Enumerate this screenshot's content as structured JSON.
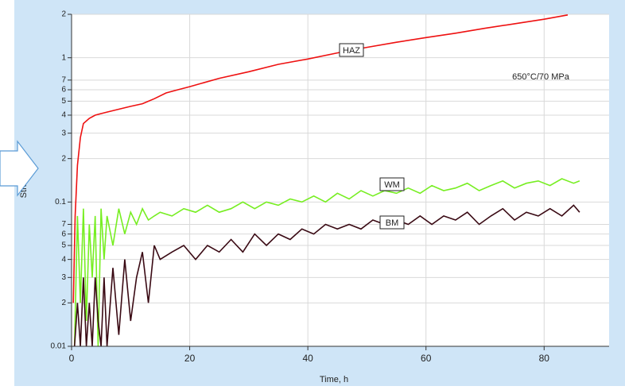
{
  "chart_data": {
    "type": "line",
    "log_y": true,
    "grid": true,
    "x_label": "Time, h",
    "y_label": "Strain, %",
    "annotations": [
      "650°C/70 MPa"
    ],
    "xlim": [
      0,
      91
    ],
    "xticks": [
      0,
      20,
      40,
      60,
      80
    ],
    "ylim": [
      0.01,
      2
    ],
    "yticks": [
      0.01,
      {
        "value": 0.02,
        "label": "2"
      },
      {
        "value": 0.03,
        "label": "3"
      },
      {
        "value": 0.04,
        "label": "4"
      },
      {
        "value": 0.05,
        "label": "5"
      },
      {
        "value": 0.06,
        "label": "6"
      },
      {
        "value": 0.07,
        "label": "7"
      },
      0.1,
      {
        "value": 0.2,
        "label": "2"
      },
      {
        "value": 0.3,
        "label": "3"
      },
      {
        "value": 0.4,
        "label": "4"
      },
      {
        "value": 0.5,
        "label": "5"
      },
      {
        "value": 0.6,
        "label": "6"
      },
      {
        "value": 0.7,
        "label": "7"
      },
      1,
      2
    ],
    "series": [
      {
        "name": "HAZ",
        "color": "#ee1111",
        "x": [
          0.3,
          0.6,
          1,
          1.5,
          2,
          3,
          4,
          5,
          6,
          8,
          10,
          12,
          14,
          16,
          18,
          20,
          25,
          30,
          35,
          40,
          45,
          50,
          55,
          60,
          65,
          70,
          75,
          80,
          84
        ],
        "values": [
          0.02,
          0.08,
          0.18,
          0.28,
          0.35,
          0.38,
          0.4,
          0.41,
          0.42,
          0.44,
          0.46,
          0.48,
          0.52,
          0.57,
          0.6,
          0.63,
          0.72,
          0.8,
          0.9,
          0.98,
          1.08,
          1.18,
          1.28,
          1.38,
          1.48,
          1.6,
          1.72,
          1.85,
          1.98
        ]
      },
      {
        "name": "WM",
        "color": "#77ee22",
        "x": [
          0.5,
          1,
          1.5,
          2,
          2.5,
          3,
          3.5,
          4,
          4.5,
          5,
          5.5,
          6,
          7,
          8,
          9,
          10,
          11,
          12,
          13,
          14,
          15,
          17,
          19,
          21,
          23,
          25,
          27,
          29,
          31,
          33,
          35,
          37,
          39,
          41,
          43,
          45,
          47,
          49,
          51,
          53,
          55,
          57,
          59,
          61,
          63,
          65,
          67,
          69,
          71,
          73,
          75,
          77,
          79,
          81,
          83,
          85,
          86
        ],
        "values": [
          0.01,
          0.08,
          0.02,
          0.09,
          0.015,
          0.07,
          0.03,
          0.08,
          0.01,
          0.09,
          0.04,
          0.08,
          0.05,
          0.09,
          0.06,
          0.085,
          0.07,
          0.09,
          0.075,
          0.08,
          0.085,
          0.08,
          0.09,
          0.085,
          0.095,
          0.085,
          0.09,
          0.1,
          0.09,
          0.1,
          0.095,
          0.105,
          0.1,
          0.11,
          0.1,
          0.115,
          0.105,
          0.12,
          0.11,
          0.12,
          0.115,
          0.125,
          0.115,
          0.13,
          0.12,
          0.125,
          0.135,
          0.12,
          0.13,
          0.14,
          0.125,
          0.135,
          0.14,
          0.13,
          0.145,
          0.135,
          0.14
        ]
      },
      {
        "name": "BM",
        "color": "#3a0a14",
        "x": [
          0.5,
          1,
          1.5,
          2,
          2.5,
          3,
          3.5,
          4,
          4.5,
          5,
          5.5,
          6,
          7,
          8,
          9,
          10,
          11,
          12,
          13,
          14,
          15,
          17,
          19,
          21,
          23,
          25,
          27,
          29,
          31,
          33,
          35,
          37,
          39,
          41,
          43,
          45,
          47,
          49,
          51,
          53,
          55,
          57,
          59,
          61,
          63,
          65,
          67,
          69,
          71,
          73,
          75,
          77,
          79,
          81,
          83,
          85,
          86
        ],
        "values": [
          0.01,
          0.02,
          0.01,
          0.03,
          0.01,
          0.02,
          0.01,
          0.03,
          0.015,
          0.01,
          0.03,
          0.01,
          0.035,
          0.012,
          0.04,
          0.015,
          0.03,
          0.045,
          0.02,
          0.05,
          0.04,
          0.045,
          0.05,
          0.04,
          0.05,
          0.045,
          0.055,
          0.045,
          0.06,
          0.05,
          0.06,
          0.055,
          0.065,
          0.06,
          0.07,
          0.065,
          0.07,
          0.065,
          0.075,
          0.07,
          0.075,
          0.07,
          0.08,
          0.07,
          0.08,
          0.075,
          0.085,
          0.07,
          0.08,
          0.09,
          0.075,
          0.085,
          0.08,
          0.09,
          0.08,
          0.095,
          0.085
        ]
      }
    ]
  }
}
